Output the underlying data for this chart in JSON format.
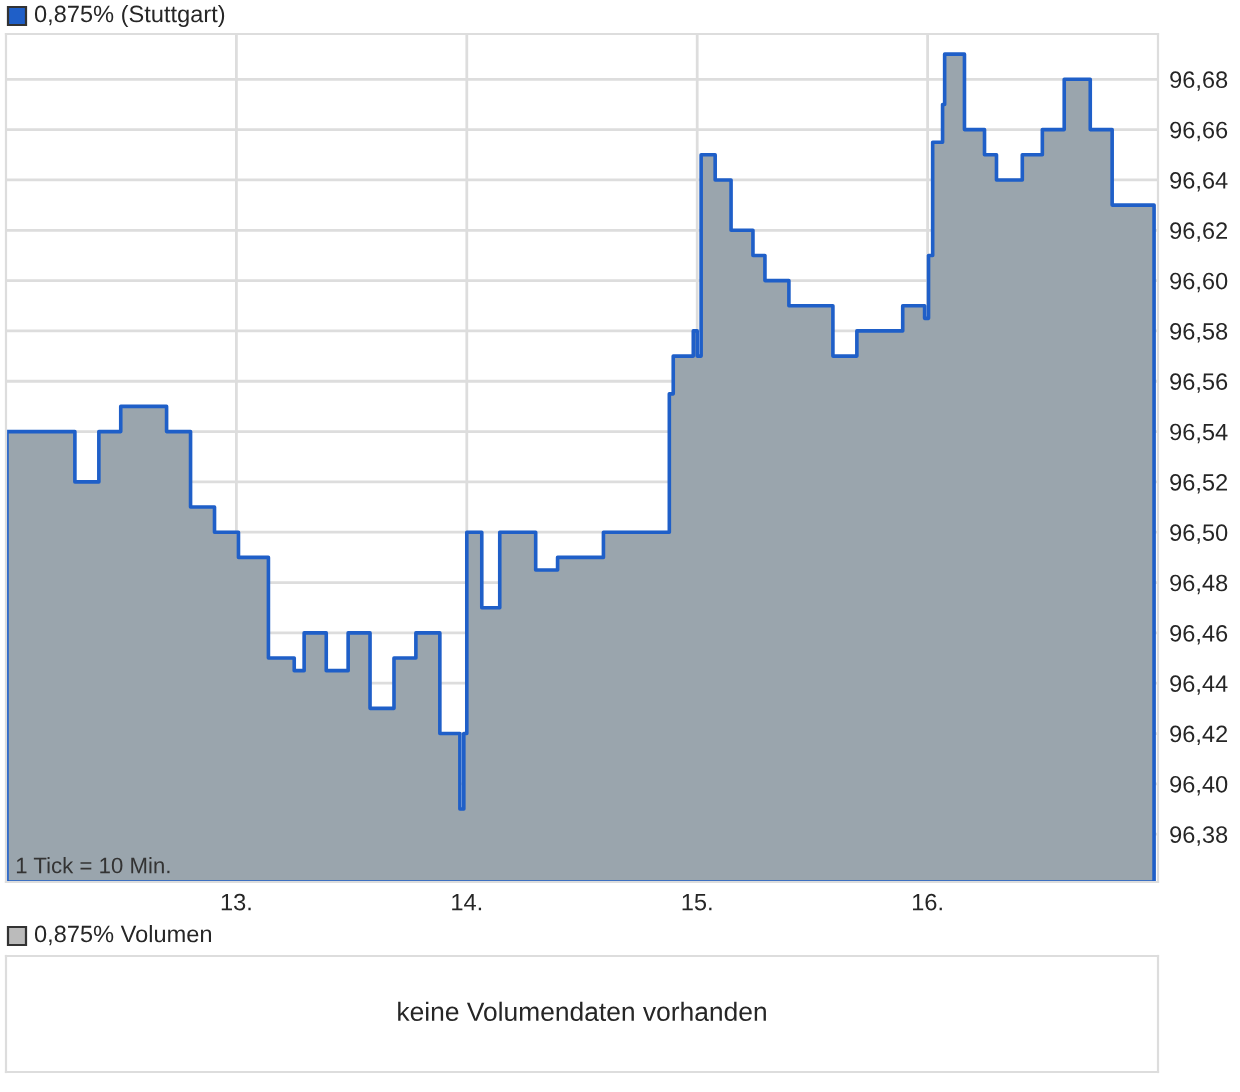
{
  "chart_data": [
    {
      "type": "area",
      "title": "0,875% (Stuttgart)",
      "series": [
        {
          "color": "#1f5fc8",
          "x": [
            12.004,
            12.299,
            12.403,
            12.498,
            12.697,
            12.801,
            12.905,
            13.009,
            13.139,
            13.251,
            13.294,
            13.39,
            13.485,
            13.58,
            13.684,
            13.779,
            13.883,
            13.97,
            13.987,
            14.0,
            14.065,
            14.143,
            14.299,
            14.394,
            14.593,
            14.879,
            14.896,
            14.983,
            15.0,
            15.017,
            15.078,
            15.147,
            15.242,
            15.294,
            15.398,
            15.589,
            15.693,
            15.892,
            15.987,
            16.004,
            16.022,
            16.065,
            16.074,
            16.16,
            16.247,
            16.299,
            16.411,
            16.498,
            16.593,
            16.706,
            16.801,
            16.983
          ],
          "values": [
            96.54,
            96.52,
            96.54,
            96.55,
            96.54,
            96.51,
            96.5,
            96.49,
            96.45,
            96.445,
            96.46,
            96.445,
            96.46,
            96.43,
            96.45,
            96.46,
            96.42,
            96.39,
            96.42,
            96.5,
            96.47,
            96.5,
            96.485,
            96.49,
            96.5,
            96.555,
            96.57,
            96.58,
            96.57,
            96.65,
            96.64,
            96.62,
            96.61,
            96.6,
            96.59,
            96.57,
            96.58,
            96.59,
            96.585,
            96.61,
            96.655,
            96.67,
            96.69,
            96.66,
            96.65,
            96.64,
            96.65,
            96.66,
            96.68,
            96.66,
            96.63,
            96.63
          ]
        }
      ],
      "xlim": [
        12,
        17
      ],
      "xticks": [
        {
          "value": 13,
          "label": "13."
        },
        {
          "value": 14,
          "label": "14."
        },
        {
          "value": 15,
          "label": "15."
        },
        {
          "value": 16,
          "label": "16."
        }
      ],
      "ylim": [
        96.361,
        96.698
      ],
      "yticks": [
        {
          "value": 96.38,
          "label": "96,38"
        },
        {
          "value": 96.4,
          "label": "96,40"
        },
        {
          "value": 96.42,
          "label": "96,42"
        },
        {
          "value": 96.44,
          "label": "96,44"
        },
        {
          "value": 96.46,
          "label": "96,46"
        },
        {
          "value": 96.48,
          "label": "96,48"
        },
        {
          "value": 96.5,
          "label": "96,50"
        },
        {
          "value": 96.52,
          "label": "96,52"
        },
        {
          "value": 96.54,
          "label": "96,54"
        },
        {
          "value": 96.56,
          "label": "96,56"
        },
        {
          "value": 96.58,
          "label": "96,58"
        },
        {
          "value": 96.6,
          "label": "96,60"
        },
        {
          "value": 96.62,
          "label": "96,62"
        },
        {
          "value": 96.64,
          "label": "96,64"
        },
        {
          "value": 96.66,
          "label": "96,66"
        },
        {
          "value": 96.68,
          "label": "96,68"
        }
      ],
      "grid": true,
      "annotations": [
        "1 Tick = 10 Min."
      ]
    },
    {
      "type": "other",
      "title": "0,875% Volumen",
      "annotations": [
        "keine Volumendaten vorhanden"
      ]
    }
  ]
}
